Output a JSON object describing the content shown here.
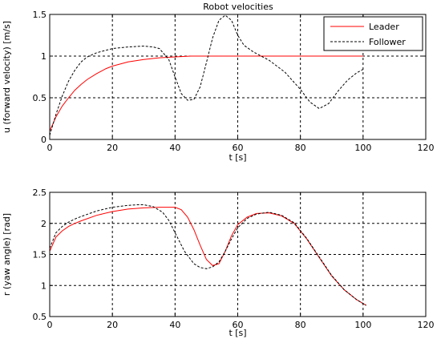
{
  "figure": {
    "title": "Robot velocities"
  },
  "colors": {
    "leader": "#ff0000",
    "follower": "#000000",
    "grid": "#000000",
    "background": "#ffffff"
  },
  "chart_data": [
    {
      "type": "line",
      "title": "Robot velocities",
      "xlabel": "t [s]",
      "ylabel": "u (forward velocity) [m/s]",
      "xlim": [
        0,
        120
      ],
      "ylim": [
        0,
        1.5
      ],
      "xticks": [
        0,
        20,
        40,
        60,
        80,
        100,
        120
      ],
      "xtick_labels": [
        "0",
        "20",
        "40",
        "60",
        "80",
        "100",
        "120"
      ],
      "yticks": [
        0,
        0.5,
        1,
        1.5
      ],
      "ytick_labels": [
        "0",
        "0.5",
        "1",
        "1.5"
      ],
      "grid": true,
      "legend": {
        "position": "top-right",
        "entries": [
          "Leader",
          "Follower"
        ]
      },
      "series": [
        {
          "name": "Leader",
          "color": "#ff0000",
          "style": "solid",
          "x": [
            0,
            2,
            4,
            6,
            8,
            10,
            12,
            15,
            18,
            20,
            25,
            30,
            35,
            40,
            45,
            50,
            60,
            70,
            80,
            90,
            100
          ],
          "y": [
            0.1,
            0.27,
            0.4,
            0.5,
            0.59,
            0.66,
            0.72,
            0.79,
            0.85,
            0.88,
            0.93,
            0.96,
            0.98,
            0.99,
            1.0,
            1.0,
            1.0,
            1.0,
            1.0,
            1.0,
            1.0
          ]
        },
        {
          "name": "Follower",
          "color": "#000000",
          "style": "dashed",
          "x": [
            0,
            2,
            4,
            6,
            8,
            10,
            12,
            15,
            18,
            20,
            25,
            30,
            33,
            35,
            38,
            40,
            42,
            44,
            46,
            48,
            50,
            52,
            54,
            56,
            58,
            60,
            62,
            65,
            70,
            75,
            80,
            83,
            86,
            89,
            92,
            95,
            98,
            100
          ],
          "y": [
            0.05,
            0.3,
            0.52,
            0.7,
            0.83,
            0.93,
            0.99,
            1.04,
            1.07,
            1.09,
            1.11,
            1.12,
            1.11,
            1.09,
            0.96,
            0.75,
            0.55,
            0.47,
            0.48,
            0.63,
            0.92,
            1.22,
            1.43,
            1.49,
            1.43,
            1.25,
            1.13,
            1.05,
            0.95,
            0.81,
            0.6,
            0.45,
            0.37,
            0.43,
            0.58,
            0.71,
            0.8,
            0.84
          ]
        }
      ]
    },
    {
      "type": "line",
      "title": "",
      "xlabel": "t [s]",
      "ylabel": "r (yaw angle) [rad]",
      "xlim": [
        0,
        120
      ],
      "ylim": [
        0.5,
        2.5
      ],
      "xticks": [
        0,
        20,
        40,
        60,
        80,
        100,
        120
      ],
      "xtick_labels": [
        "0",
        "20",
        "40",
        "60",
        "80",
        "100",
        "120"
      ],
      "yticks": [
        0.5,
        1,
        1.5,
        2,
        2.5
      ],
      "ytick_labels": [
        "0.5",
        "1",
        "1.5",
        "2",
        "2.5"
      ],
      "grid": true,
      "series": [
        {
          "name": "Leader",
          "color": "#ff0000",
          "style": "solid",
          "x": [
            0,
            2,
            4,
            6,
            8,
            10,
            15,
            20,
            25,
            30,
            35,
            40,
            42,
            44,
            46,
            48,
            50,
            52,
            54,
            56,
            58,
            60,
            63,
            66,
            70,
            74,
            78,
            82,
            86,
            90,
            94,
            98,
            101
          ],
          "y": [
            1.55,
            1.78,
            1.88,
            1.95,
            2.0,
            2.04,
            2.13,
            2.19,
            2.23,
            2.25,
            2.26,
            2.26,
            2.22,
            2.1,
            1.9,
            1.65,
            1.42,
            1.32,
            1.35,
            1.55,
            1.8,
            1.98,
            2.1,
            2.16,
            2.17,
            2.12,
            2.0,
            1.75,
            1.45,
            1.15,
            0.93,
            0.77,
            0.68
          ]
        },
        {
          "name": "Follower",
          "color": "#000000",
          "style": "dashed",
          "x": [
            0,
            2,
            4,
            6,
            8,
            10,
            15,
            20,
            25,
            28,
            30,
            33,
            36,
            38,
            40,
            43,
            46,
            48,
            50,
            52,
            54,
            56,
            58,
            60,
            63,
            66,
            70,
            74,
            78,
            82,
            86,
            90,
            94,
            98,
            101
          ],
          "y": [
            1.6,
            1.85,
            1.95,
            2.02,
            2.07,
            2.11,
            2.2,
            2.26,
            2.29,
            2.3,
            2.3,
            2.27,
            2.18,
            2.05,
            1.85,
            1.55,
            1.35,
            1.29,
            1.27,
            1.3,
            1.38,
            1.55,
            1.75,
            1.93,
            2.08,
            2.15,
            2.18,
            2.13,
            2.01,
            1.76,
            1.46,
            1.16,
            0.93,
            0.77,
            0.68
          ]
        }
      ]
    }
  ]
}
